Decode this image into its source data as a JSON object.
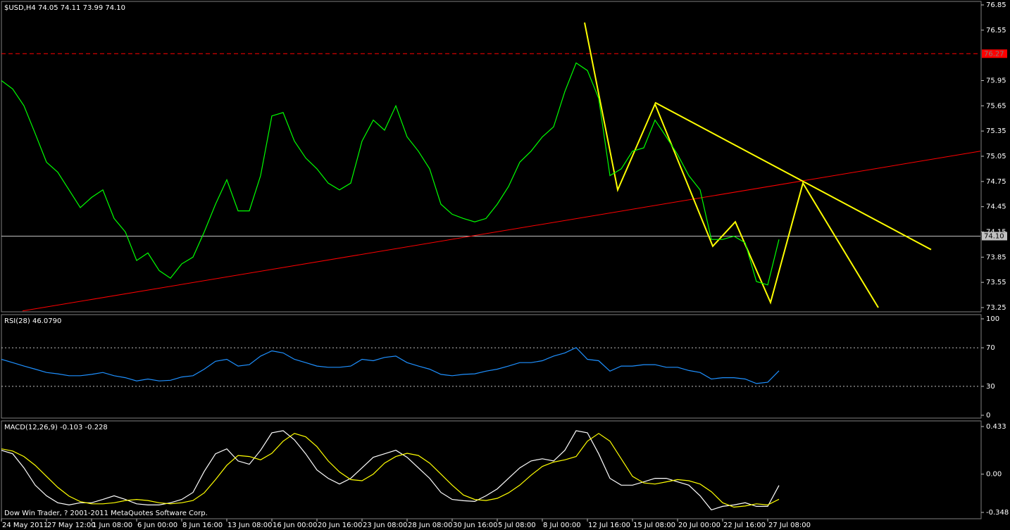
{
  "chart_data": [
    {
      "type": "line",
      "title": "$USD,H4 74.05 74.11 73.99 74.10",
      "x": [
        0,
        4,
        8,
        12,
        16,
        20,
        24,
        28,
        32,
        36,
        40,
        44,
        48,
        52,
        56,
        60,
        64,
        68,
        72,
        76,
        80,
        84,
        88,
        92,
        96,
        100,
        104,
        108,
        112,
        116,
        120,
        124,
        128,
        132,
        136,
        140,
        144,
        148,
        152,
        156,
        160,
        164,
        168,
        172,
        176,
        180,
        184,
        188,
        192,
        196,
        200,
        204,
        208,
        212,
        216,
        220,
        224,
        228,
        232,
        236,
        240,
        244,
        248,
        252,
        256,
        260,
        264,
        268,
        272,
        276
      ],
      "xlim": [
        0,
        347.5
      ],
      "ylim": [
        73.25,
        76.85
      ],
      "yticks": [
        73.25,
        73.55,
        73.85,
        74.15,
        74.45,
        74.75,
        75.05,
        75.35,
        75.65,
        75.95,
        76.55,
        76.85
      ],
      "series": [
        {
          "color": "#00ff00",
          "values": [
            75.95,
            75.85,
            75.65,
            75.32,
            74.98,
            74.86,
            74.65,
            74.44,
            74.56,
            74.65,
            74.31,
            74.15,
            73.81,
            73.9,
            73.69,
            73.6,
            73.77,
            73.85,
            74.15,
            74.48,
            74.77,
            74.4,
            74.4,
            74.82,
            75.53,
            75.57,
            75.23,
            75.03,
            74.9,
            74.73,
            74.65,
            74.73,
            75.23,
            75.48,
            75.36,
            75.65,
            75.28,
            75.11,
            74.9,
            74.48,
            74.36,
            74.31,
            74.27,
            74.31,
            74.48,
            74.69,
            74.98,
            75.11,
            75.28,
            75.4,
            75.82,
            76.16,
            76.07,
            75.74,
            74.82,
            74.9,
            75.11,
            75.15,
            75.48,
            75.28,
            75.07,
            74.82,
            74.65,
            74.06,
            74.06,
            74.1,
            74.02,
            73.56,
            73.52,
            74.06
          ]
        }
      ],
      "hlines": [
        {
          "value": 76.27,
          "label": "76.27",
          "color": "#ff0000",
          "dashed": true
        },
        {
          "value": 74.1,
          "label": "74.10",
          "color": "#c0c0c0",
          "dashed": false
        }
      ],
      "trendlines": [
        {
          "color": "#ff0000",
          "x": [
            7.5,
            347.5
          ],
          "values": [
            73.21,
            75.11
          ]
        },
        {
          "color": "#ffff00",
          "x": [
            207,
            218.75,
            232,
            252.5,
            260.5,
            273,
            284.5,
            311.25
          ],
          "values": [
            76.64,
            74.65,
            75.67,
            73.98,
            74.27,
            73.31,
            74.73,
            73.25
          ]
        },
        {
          "color": "#ffff00",
          "x": [
            232,
            330
          ],
          "values": [
            75.69,
            73.94
          ]
        }
      ]
    },
    {
      "type": "line",
      "title": "RSI(28) 46.0790",
      "x": [
        0,
        4,
        8,
        12,
        16,
        20,
        24,
        28,
        32,
        36,
        40,
        44,
        48,
        52,
        56,
        60,
        64,
        68,
        72,
        76,
        80,
        84,
        88,
        92,
        96,
        100,
        104,
        108,
        112,
        116,
        120,
        124,
        128,
        132,
        136,
        140,
        144,
        148,
        152,
        156,
        160,
        164,
        168,
        172,
        176,
        180,
        184,
        188,
        192,
        196,
        200,
        204,
        208,
        212,
        216,
        220,
        224,
        228,
        232,
        236,
        240,
        244,
        248,
        252,
        256,
        260,
        264,
        268,
        272,
        276
      ],
      "xlim": [
        0,
        347.5
      ],
      "ylim": [
        0,
        100
      ],
      "yticks": [
        0,
        30,
        70,
        100
      ],
      "levels": [
        30,
        70
      ],
      "series": [
        {
          "color": "#1e90ff",
          "values": [
            58,
            54.6,
            51,
            47.8,
            44.4,
            43,
            41,
            41,
            42.4,
            44.4,
            41,
            39,
            35.6,
            37.6,
            35.6,
            36.3,
            39.7,
            41,
            47.8,
            56,
            58,
            51,
            52.5,
            61.4,
            66.8,
            64.7,
            58,
            54.6,
            51,
            49.8,
            49.8,
            51,
            58,
            56.6,
            60,
            61.4,
            54.6,
            51,
            47.8,
            42.4,
            41,
            42.4,
            43,
            45.8,
            47.8,
            51,
            54.6,
            54.6,
            56.6,
            61.4,
            64.7,
            70.2,
            58,
            56.6,
            45.8,
            51,
            51,
            52.5,
            52.5,
            49.8,
            49.8,
            46.4,
            44.4,
            37.6,
            39,
            39,
            37.6,
            32.9,
            34.2,
            46.1
          ]
        }
      ]
    },
    {
      "type": "line",
      "title": "MACD(12,26,9) -0.103 -0.228",
      "annotation": "Dow Win Trader, ? 2001-2011 MetaQuotes Software Corp.",
      "x": [
        0,
        4,
        8,
        12,
        16,
        20,
        24,
        28,
        32,
        36,
        40,
        44,
        48,
        52,
        56,
        60,
        64,
        68,
        72,
        76,
        80,
        84,
        88,
        92,
        96,
        100,
        104,
        108,
        112,
        116,
        120,
        124,
        128,
        132,
        136,
        140,
        144,
        148,
        152,
        156,
        160,
        164,
        168,
        172,
        176,
        180,
        184,
        188,
        192,
        196,
        200,
        204,
        208,
        212,
        216,
        220,
        224,
        228,
        232,
        236,
        240,
        244,
        248,
        252,
        256,
        260,
        264,
        268,
        272,
        276
      ],
      "xlim": [
        0,
        347.5
      ],
      "ylim": [
        -0.348,
        0.433
      ],
      "yticks": [
        -0.348,
        {
          "value": 0,
          "label": "0.00"
        },
        0.433
      ],
      "xticks": [
        {
          "value": 0,
          "label": "24 May 2011"
        },
        {
          "value": 16,
          "label": "27 May 12:00"
        },
        {
          "value": 32,
          "label": "1 Jun 08:00"
        },
        {
          "value": 48,
          "label": "6 Jun 00:00"
        },
        {
          "value": 64,
          "label": "8 Jun 16:00"
        },
        {
          "value": 80,
          "label": "13 Jun 08:00"
        },
        {
          "value": 96,
          "label": "16 Jun 00:00"
        },
        {
          "value": 112,
          "label": "20 Jun 16:00"
        },
        {
          "value": 128,
          "label": "23 Jun 08:00"
        },
        {
          "value": 144,
          "label": "28 Jun 08:00"
        },
        {
          "value": 160,
          "label": "30 Jun 16:00"
        },
        {
          "value": 176,
          "label": "5 Jul 08:00"
        },
        {
          "value": 192,
          "label": "8 Jul 00:00"
        },
        {
          "value": 208,
          "label": "12 Jul 16:00"
        },
        {
          "value": 224,
          "label": "15 Jul 08:00"
        },
        {
          "value": 240,
          "label": "20 Jul 00:00"
        },
        {
          "value": 256,
          "label": "22 Jul 16:00"
        },
        {
          "value": 272,
          "label": "27 Jul 08:00"
        }
      ],
      "series": [
        {
          "color": "#ffffff",
          "values": [
            0.217,
            0.185,
            0.057,
            -0.1,
            -0.197,
            -0.26,
            -0.28,
            -0.26,
            -0.26,
            -0.23,
            -0.197,
            -0.23,
            -0.27,
            -0.28,
            -0.28,
            -0.26,
            -0.23,
            -0.166,
            0.025,
            0.185,
            0.23,
            0.12,
            0.09,
            0.217,
            0.376,
            0.395,
            0.312,
            0.185,
            0.038,
            -0.038,
            -0.09,
            -0.038,
            0.057,
            0.153,
            0.185,
            0.217,
            0.153,
            0.057,
            -0.038,
            -0.166,
            -0.23,
            -0.242,
            -0.248,
            -0.197,
            -0.134,
            -0.038,
            0.057,
            0.12,
            0.14,
            0.12,
            0.217,
            0.395,
            0.376,
            0.185,
            -0.038,
            -0.1,
            -0.1,
            -0.07,
            -0.038,
            -0.038,
            -0.07,
            -0.1,
            -0.197,
            -0.325,
            -0.293,
            -0.28,
            -0.26,
            -0.293,
            -0.293,
            -0.103
          ]
        },
        {
          "color": "#ffff00",
          "values": [
            0.23,
            0.21,
            0.16,
            0.08,
            -0.02,
            -0.12,
            -0.2,
            -0.25,
            -0.27,
            -0.27,
            -0.26,
            -0.24,
            -0.23,
            -0.24,
            -0.26,
            -0.27,
            -0.26,
            -0.24,
            -0.17,
            -0.05,
            0.08,
            0.17,
            0.16,
            0.13,
            0.19,
            0.3,
            0.37,
            0.34,
            0.25,
            0.12,
            0.02,
            -0.05,
            -0.06,
            0.0,
            0.1,
            0.16,
            0.19,
            0.17,
            0.1,
            0.0,
            -0.1,
            -0.19,
            -0.23,
            -0.24,
            -0.22,
            -0.17,
            -0.1,
            -0.01,
            0.07,
            0.11,
            0.13,
            0.16,
            0.3,
            0.37,
            0.3,
            0.14,
            -0.02,
            -0.08,
            -0.09,
            -0.07,
            -0.05,
            -0.06,
            -0.09,
            -0.16,
            -0.26,
            -0.3,
            -0.29,
            -0.27,
            -0.28,
            -0.228
          ]
        }
      ]
    }
  ]
}
